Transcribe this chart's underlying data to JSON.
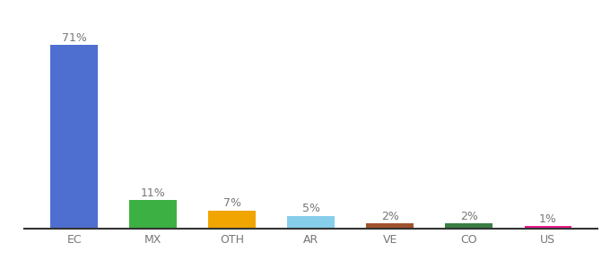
{
  "categories": [
    "EC",
    "MX",
    "OTH",
    "AR",
    "VE",
    "CO",
    "US"
  ],
  "values": [
    71,
    11,
    7,
    5,
    2,
    2,
    1
  ],
  "bar_colors": [
    "#4f6fd0",
    "#3cb043",
    "#f0a500",
    "#87ceeb",
    "#a0522d",
    "#3a7d44",
    "#e91e8c"
  ],
  "labels": [
    "71%",
    "11%",
    "7%",
    "5%",
    "2%",
    "2%",
    "1%"
  ],
  "ylim": [
    0,
    80
  ],
  "background_color": "#ffffff",
  "label_fontsize": 9,
  "tick_fontsize": 9
}
